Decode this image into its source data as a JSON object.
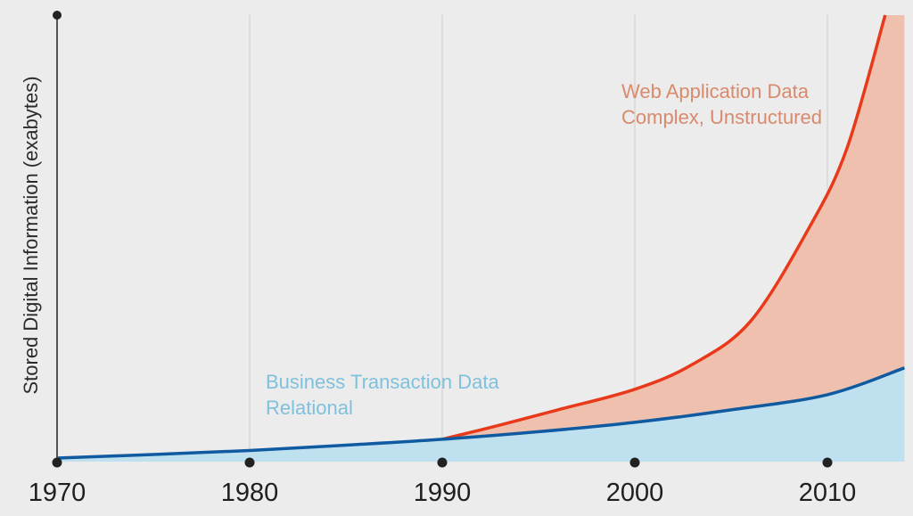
{
  "chart_data": {
    "type": "area",
    "title": "",
    "xlabel": "",
    "ylabel": "Stored Digital Information (exabytes)",
    "x_ticks": [
      "1970",
      "1980",
      "1990",
      "2000",
      "2010"
    ],
    "xlim": [
      1970,
      2014
    ],
    "ylim": [
      0,
      100
    ],
    "y_tick_labels_shown": false,
    "grid": "vertical",
    "series": [
      {
        "name": "Business Transaction Data",
        "sublabel": "Relational",
        "color": "#0f5aa0",
        "fill": "#bfe1ef",
        "label_color": "#7fc1dc",
        "x": [
          1970,
          1975,
          1980,
          1985,
          1990,
          1995,
          2000,
          2005,
          2010,
          2014
        ],
        "values": [
          0.8,
          1.6,
          2.5,
          3.7,
          5.0,
          6.7,
          8.8,
          11.6,
          15.0,
          21.0
        ]
      },
      {
        "name": "Web Application Data",
        "sublabel": "Complex, Unstructured",
        "color": "#e8391a",
        "fill": "#efc0ae",
        "label_color": "#d98a6c",
        "x": [
          1990,
          1993,
          1996,
          2000,
          2003,
          2006,
          2009,
          2011,
          2013
        ],
        "values": [
          5.0,
          8.2,
          11.6,
          16.2,
          21.8,
          31.4,
          52.0,
          70.0,
          100.0
        ]
      }
    ]
  }
}
